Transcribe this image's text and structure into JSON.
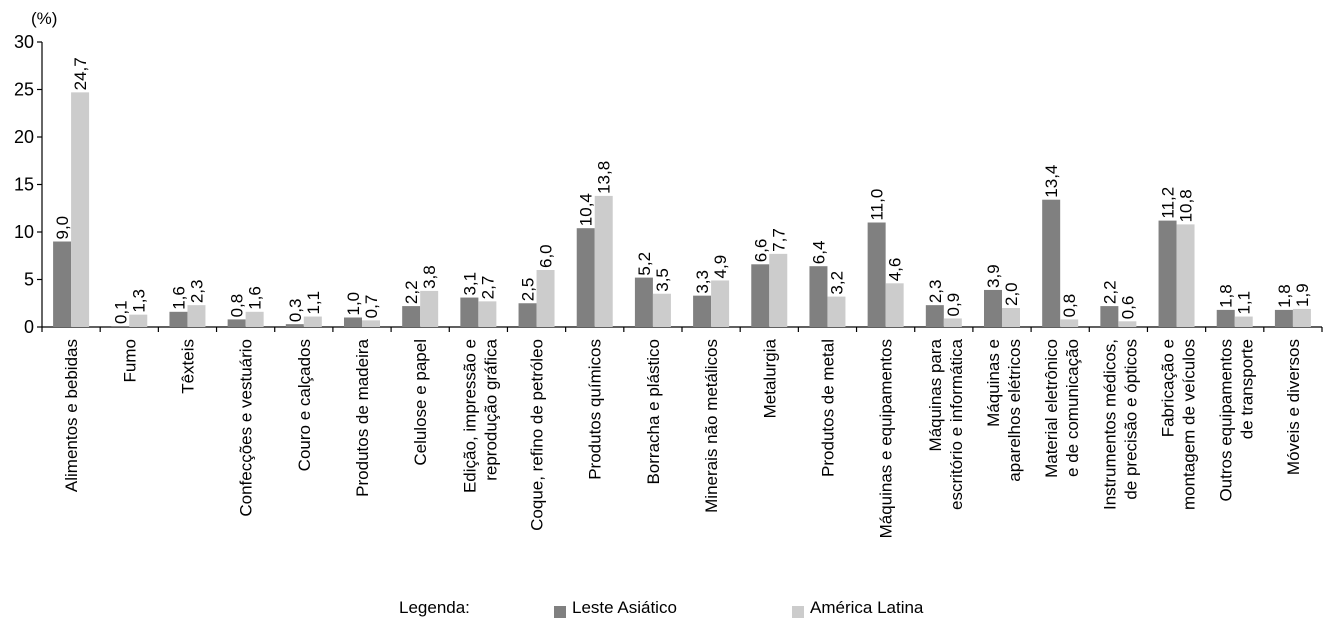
{
  "chart_data": {
    "type": "bar",
    "ylabel": "(%)",
    "ylim": [
      0,
      30
    ],
    "yticks": [
      0,
      5,
      10,
      15,
      20,
      25,
      30
    ],
    "categories": [
      "Alimentos e bebidas",
      "Fumo",
      "Têxteis",
      "Confecções e vestuário",
      "Couro e calçados",
      "Produtos de madeira",
      "Celulose e papel",
      "Edição, impressão e reprodução gráfica",
      "Coque, refino de petróleo",
      "Produtos químicos",
      "Borracha e plástico",
      "Minerais não metálicos",
      "Metalurgia",
      "Produtos de metal",
      "Máquinas e equipamentos",
      "Máquinas para escritório e informática",
      "Máquinas e aparelhos elétricos",
      "Material eletrônico e de comunicação",
      "Instrumentos médicos, de precisão e ópticos",
      "Fabricação e montagem de veículos",
      "Outros equipamentos de transporte",
      "Móveis e diversos"
    ],
    "series": [
      {
        "name": "Leste Asiático",
        "color": "#808080",
        "values": [
          9.0,
          0.1,
          1.6,
          0.8,
          0.3,
          1.0,
          2.2,
          3.1,
          2.5,
          10.4,
          5.2,
          3.3,
          6.6,
          6.4,
          11.0,
          2.3,
          3.9,
          13.4,
          2.2,
          11.2,
          1.8,
          1.8
        ],
        "labels": [
          "9,0",
          "0,1",
          "1,6",
          "0,8",
          "0,3",
          "1,0",
          "2,2",
          "3,1",
          "2,5",
          "10,4",
          "5,2",
          "3,3",
          "6,6",
          "6,4",
          "11,0",
          "2,3",
          "3,9",
          "13,4",
          "2,2",
          "11,2",
          "1,8",
          "1,8"
        ]
      },
      {
        "name": "América Latina",
        "color": "#cccccc",
        "values": [
          24.7,
          1.3,
          2.3,
          1.6,
          1.1,
          0.7,
          3.8,
          2.7,
          6.0,
          13.8,
          3.5,
          4.9,
          7.7,
          3.2,
          4.6,
          0.9,
          2.0,
          0.8,
          0.6,
          10.8,
          1.1,
          1.9
        ],
        "labels": [
          "24,7",
          "1,3",
          "2,3",
          "1,6",
          "1,1",
          "0,7",
          "3,8",
          "2,7",
          "6,0",
          "13,8",
          "3,5",
          "4,9",
          "7,7",
          "3,2",
          "4,6",
          "0,9",
          "2,0",
          "0,8",
          "0,6",
          "10,8",
          "1,1",
          "1,9"
        ]
      }
    ],
    "legend": {
      "title": "Legenda:",
      "placement": "bottom"
    }
  }
}
